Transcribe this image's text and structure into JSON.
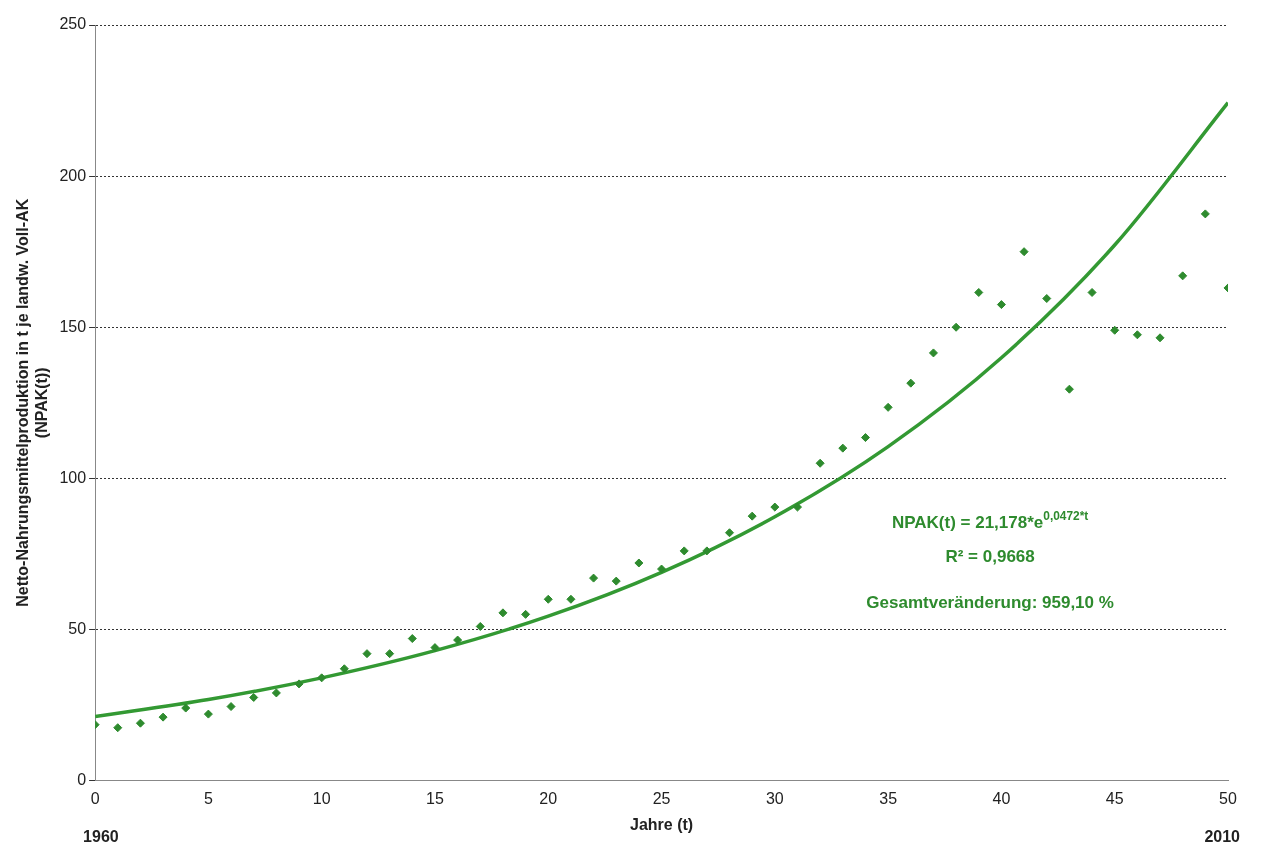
{
  "chart_data": {
    "type": "scatter",
    "xlabel": "Jahre (t)",
    "ylabel": "Netto-Nahrungsmittelproduktion in t je landw. Voll-AK\n(NPAK(t))",
    "xlim": [
      0,
      50
    ],
    "xticks": [
      0,
      5,
      10,
      15,
      20,
      25,
      30,
      35,
      40,
      45,
      50
    ],
    "ylim": [
      0,
      250
    ],
    "yticks": [
      0,
      50,
      100,
      150,
      200,
      250
    ],
    "grid": "y",
    "legend": false,
    "marker": "diamond",
    "series": [
      {
        "color": "#2e8b2e",
        "x": [
          0,
          1,
          2,
          3,
          4,
          5,
          6,
          7,
          8,
          9,
          10,
          11,
          12,
          13,
          14,
          15,
          16,
          17,
          18,
          19,
          20,
          21,
          22,
          23,
          24,
          25,
          26,
          27,
          28,
          29,
          30,
          31,
          32,
          33,
          34,
          35,
          36,
          37,
          38,
          39,
          40,
          41,
          42,
          43,
          44,
          45,
          46,
          47,
          48,
          49,
          50
        ],
        "values": [
          18.5,
          17.5,
          19,
          21,
          24,
          22,
          24.5,
          27.5,
          29,
          32,
          34,
          37,
          42,
          42,
          47,
          44,
          46.5,
          51,
          55.5,
          55,
          60,
          60,
          67,
          66,
          72,
          70,
          76,
          76,
          82,
          87.5,
          90.5,
          90.5,
          105,
          110,
          113.5,
          123.5,
          131.5,
          141.5,
          150,
          161.5,
          157.5,
          175,
          159.5,
          129.5,
          161.5,
          149,
          147.5,
          146.5,
          167,
          187.5,
          163
        ]
      },
      {
        "type": "line",
        "color": "#339933",
        "marker": "none",
        "x": [
          0,
          5,
          10,
          15,
          20,
          25,
          30,
          35,
          40,
          45,
          50
        ],
        "values": [
          21.2,
          26.8,
          34.0,
          43.0,
          54.4,
          68.9,
          87.3,
          110.5,
          139.9,
          177.2,
          224.3
        ]
      }
    ],
    "annotations": [
      "NPAK(t) = 21,178*e$^{0,0472*t}$",
      "R² = 0,9668",
      "Gesamtveränderung: 959,10 %",
      "1960",
      "2010"
    ]
  }
}
